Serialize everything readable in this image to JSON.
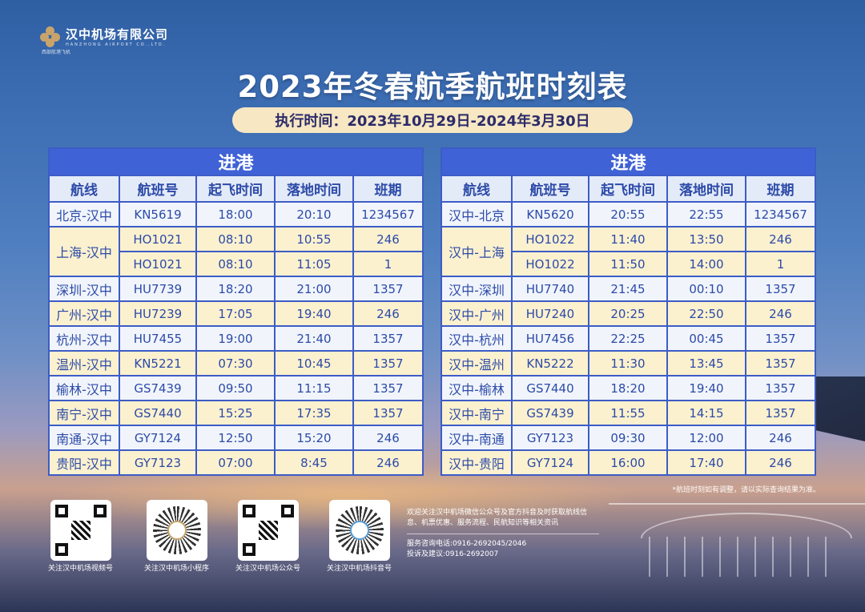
{
  "company": {
    "name": "汉中机场有限公司",
    "name_en": "HANZHONG AIRPORT CO.,LTD.",
    "slogan": "西部航港飞机"
  },
  "title": "2023年冬春航季航班时刻表",
  "period": "执行时间：2023年10月29日-2024年3月30日",
  "columns": [
    "航线",
    "航班号",
    "起飞时间",
    "落地时间",
    "班期"
  ],
  "arrivals": {
    "header": "进港",
    "rows": [
      {
        "route": "北京-汉中",
        "flight": "KN5619",
        "dep": "18:00",
        "arr": "20:10",
        "days": "1234567"
      },
      {
        "route": "上海-汉中",
        "flight": "HO1021",
        "dep": "08:10",
        "arr": "10:55",
        "days": "246"
      },
      {
        "route": "",
        "flight": "HO1021",
        "dep": "08:10",
        "arr": "11:05",
        "days": "1"
      },
      {
        "route": "深圳-汉中",
        "flight": "HU7739",
        "dep": "18:20",
        "arr": "21:00",
        "days": "1357"
      },
      {
        "route": "广州-汉中",
        "flight": "HU7239",
        "dep": "17:05",
        "arr": "19:40",
        "days": "246"
      },
      {
        "route": "杭州-汉中",
        "flight": "HU7455",
        "dep": "19:00",
        "arr": "21:40",
        "days": "1357"
      },
      {
        "route": "温州-汉中",
        "flight": "KN5221",
        "dep": "07:30",
        "arr": "10:45",
        "days": "1357"
      },
      {
        "route": "榆林-汉中",
        "flight": "GS7439",
        "dep": "09:50",
        "arr": "11:15",
        "days": "1357"
      },
      {
        "route": "南宁-汉中",
        "flight": "GS7440",
        "dep": "15:25",
        "arr": "17:35",
        "days": "1357"
      },
      {
        "route": "南通-汉中",
        "flight": "GY7124",
        "dep": "12:50",
        "arr": "15:20",
        "days": "246"
      },
      {
        "route": "贵阳-汉中",
        "flight": "GY7123",
        "dep": "07:00",
        "arr": "8:45",
        "days": "246"
      }
    ]
  },
  "departures": {
    "header": "进港",
    "rows": [
      {
        "route": "汉中-北京",
        "flight": "KN5620",
        "dep": "20:55",
        "arr": "22:55",
        "days": "1234567"
      },
      {
        "route": "汉中-上海",
        "flight": "HO1022",
        "dep": "11:40",
        "arr": "13:50",
        "days": "246"
      },
      {
        "route": "",
        "flight": "HO1022",
        "dep": "11:50",
        "arr": "14:00",
        "days": "1"
      },
      {
        "route": "汉中-深圳",
        "flight": "HU7740",
        "dep": "21:45",
        "arr": "00:10",
        "days": "1357"
      },
      {
        "route": "汉中-广州",
        "flight": "HU7240",
        "dep": "20:25",
        "arr": "22:50",
        "days": "246"
      },
      {
        "route": "汉中-杭州",
        "flight": "HU7456",
        "dep": "22:25",
        "arr": "00:45",
        "days": "1357"
      },
      {
        "route": "汉中-温州",
        "flight": "KN5222",
        "dep": "11:30",
        "arr": "13:45",
        "days": "1357"
      },
      {
        "route": "汉中-榆林",
        "flight": "GS7440",
        "dep": "18:20",
        "arr": "19:40",
        "days": "1357"
      },
      {
        "route": "汉中-南宁",
        "flight": "GS7439",
        "dep": "11:55",
        "arr": "14:15",
        "days": "1357"
      },
      {
        "route": "汉中-南通",
        "flight": "GY7123",
        "dep": "09:30",
        "arr": "12:00",
        "days": "246"
      },
      {
        "route": "汉中-贵阳",
        "flight": "GY7124",
        "dep": "16:00",
        "arr": "17:40",
        "days": "246"
      }
    ]
  },
  "note": "*航班时刻如有调整，请以实际查询结果为准。",
  "qr_codes": [
    {
      "label": "关注汉中机场视频号"
    },
    {
      "label": "关注汉中机场小程序"
    },
    {
      "label": "关注汉中机场公众号"
    },
    {
      "label": "关注汉中机场抖音号"
    }
  ],
  "info": {
    "welcome": "欢迎关注汉中机场微信公众号及官方抖音及时获取航线信息、机票优惠、服务流程、民航知识等相关资讯",
    "phone": "服务咨询电话:0916-2692045/2046",
    "complaint": "投诉及建议:0916-2692007"
  },
  "colors": {
    "table_header": "#3f62d6",
    "table_border": "#3d5cc6",
    "row_white": "#f1f5fb",
    "row_yellow": "#fbf1cf",
    "period_bg": "#f7e7c2",
    "text_blue": "#2c4aa8"
  }
}
